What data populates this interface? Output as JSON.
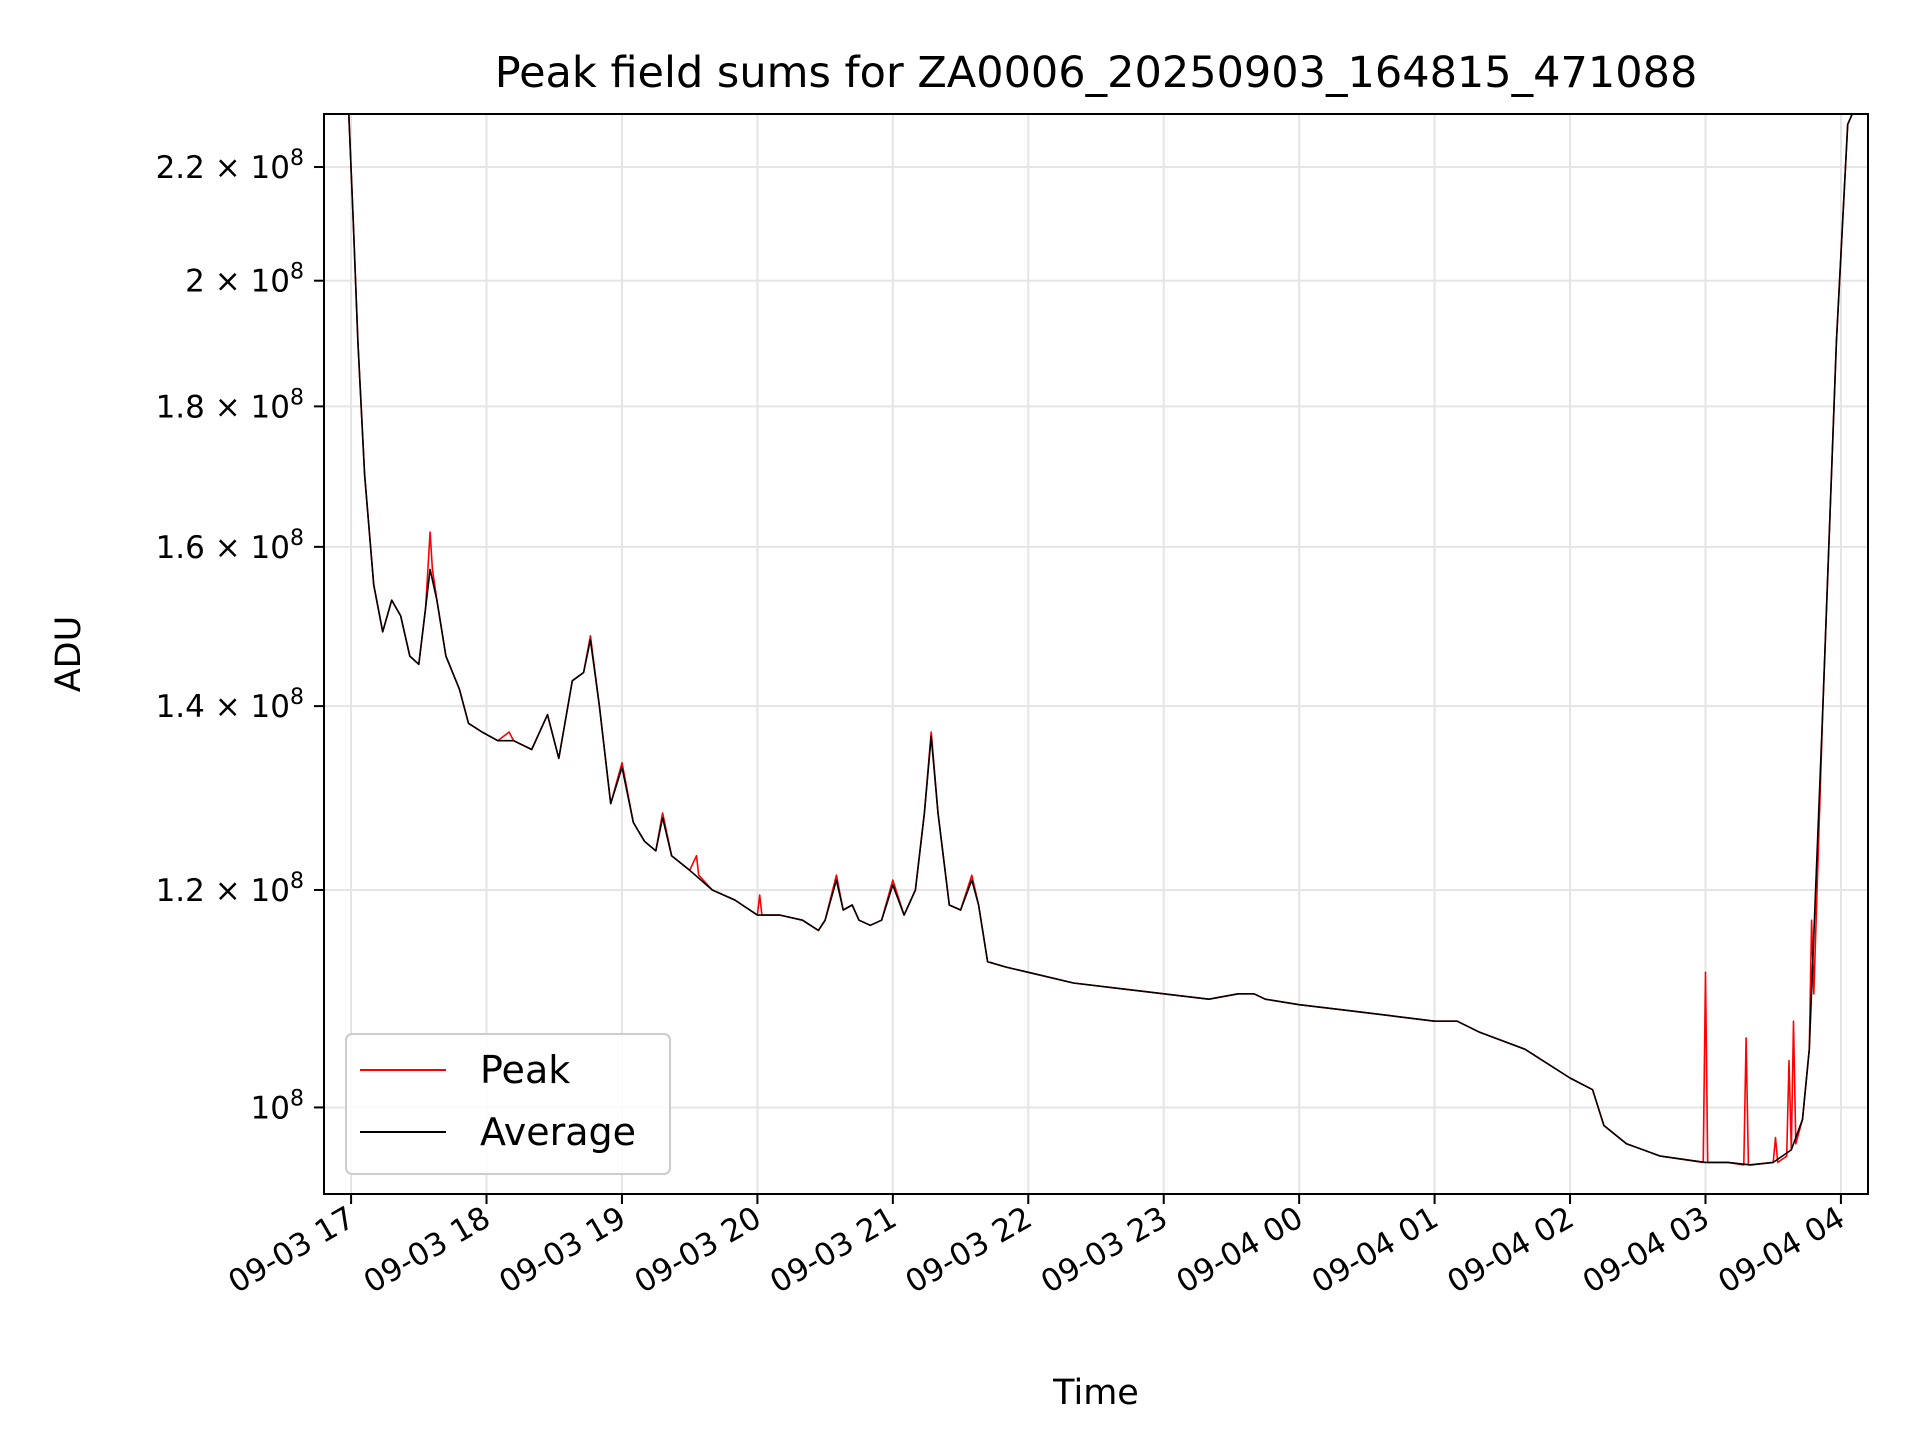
{
  "chart_data": {
    "type": "line",
    "title": "Peak field sums for ZA0006_20250903_164815_471088",
    "xlabel": "Time",
    "ylabel": "ADU",
    "x_scale": "time",
    "y_scale": "log",
    "xlim": [
      "2025-09-03 16:48",
      "2025-09-04 04:12"
    ],
    "ylim": [
      93000000.0,
      230000000.0
    ],
    "grid": true,
    "legend_position": "lower left",
    "x_ticks": [
      "2025-09-03 17:00",
      "2025-09-03 18:00",
      "2025-09-03 19:00",
      "2025-09-03 20:00",
      "2025-09-03 21:00",
      "2025-09-03 22:00",
      "2025-09-03 23:00",
      "2025-09-04 00:00",
      "2025-09-04 01:00",
      "2025-09-04 02:00",
      "2025-09-04 03:00",
      "2025-09-04 04:00"
    ],
    "x_tick_labels": [
      "09-03 17",
      "09-03 18",
      "09-03 19",
      "09-03 20",
      "09-03 21",
      "09-03 22",
      "09-03 23",
      "09-04 00",
      "09-04 01",
      "09-04 02",
      "09-04 03",
      "09-04 04"
    ],
    "y_ticks": [
      {
        "value": 100000000.0,
        "mantissa": "",
        "exp": "8"
      },
      {
        "value": 120000000.0,
        "mantissa": "1.2",
        "exp": "8"
      },
      {
        "value": 140000000.0,
        "mantissa": "1.4",
        "exp": "8"
      },
      {
        "value": 160000000.0,
        "mantissa": "1.6",
        "exp": "8"
      },
      {
        "value": 180000000.0,
        "mantissa": "1.8",
        "exp": "8"
      },
      {
        "value": 200000000.0,
        "mantissa": "2",
        "exp": "8"
      },
      {
        "value": 220000000.0,
        "mantissa": "2.2",
        "exp": "8"
      }
    ],
    "colors": {
      "peak": "#ff0000",
      "average": "#000000",
      "grid": "#e5e5e5"
    },
    "series": [
      {
        "name": "Average",
        "points": [
          [
            "2025-09-03 16:59",
            230000000.0
          ],
          [
            "2025-09-03 17:01",
            210000000.0
          ],
          [
            "2025-09-03 17:03",
            190000000.0
          ],
          [
            "2025-09-03 17:06",
            170000000.0
          ],
          [
            "2025-09-03 17:10",
            155000000.0
          ],
          [
            "2025-09-03 17:14",
            149000000.0
          ],
          [
            "2025-09-03 17:18",
            153000000.0
          ],
          [
            "2025-09-03 17:22",
            151000000.0
          ],
          [
            "2025-09-03 17:26",
            146000000.0
          ],
          [
            "2025-09-03 17:30",
            145000000.0
          ],
          [
            "2025-09-03 17:33",
            152000000.0
          ],
          [
            "2025-09-03 17:35",
            157000000.0
          ],
          [
            "2025-09-03 17:38",
            153000000.0
          ],
          [
            "2025-09-03 17:42",
            146000000.0
          ],
          [
            "2025-09-03 17:48",
            142000000.0
          ],
          [
            "2025-09-03 17:52",
            138000000.0
          ],
          [
            "2025-09-03 17:58",
            137000000.0
          ],
          [
            "2025-09-03 18:05",
            136000000.0
          ],
          [
            "2025-09-03 18:12",
            136000000.0
          ],
          [
            "2025-09-03 18:20",
            135000000.0
          ],
          [
            "2025-09-03 18:27",
            139000000.0
          ],
          [
            "2025-09-03 18:32",
            134000000.0
          ],
          [
            "2025-09-03 18:38",
            143000000.0
          ],
          [
            "2025-09-03 18:43",
            144000000.0
          ],
          [
            "2025-09-03 18:46",
            148000000.0
          ],
          [
            "2025-09-03 18:50",
            140000000.0
          ],
          [
            "2025-09-03 18:55",
            129000000.0
          ],
          [
            "2025-09-03 19:00",
            133000000.0
          ],
          [
            "2025-09-03 19:05",
            127000000.0
          ],
          [
            "2025-09-03 19:10",
            125000000.0
          ],
          [
            "2025-09-03 19:15",
            124000000.0
          ],
          [
            "2025-09-03 19:18",
            127500000.0
          ],
          [
            "2025-09-03 19:22",
            123500000.0
          ],
          [
            "2025-09-03 19:30",
            122000000.0
          ],
          [
            "2025-09-03 19:40",
            120000000.0
          ],
          [
            "2025-09-03 19:50",
            119000000.0
          ],
          [
            "2025-09-03 20:00",
            117500000.0
          ],
          [
            "2025-09-03 20:10",
            117500000.0
          ],
          [
            "2025-09-03 20:20",
            117000000.0
          ],
          [
            "2025-09-03 20:27",
            116000000.0
          ],
          [
            "2025-09-03 20:30",
            117000000.0
          ],
          [
            "2025-09-03 20:35",
            121000000.0
          ],
          [
            "2025-09-03 20:38",
            118000000.0
          ],
          [
            "2025-09-03 20:42",
            118500000.0
          ],
          [
            "2025-09-03 20:45",
            117000000.0
          ],
          [
            "2025-09-03 20:50",
            116500000.0
          ],
          [
            "2025-09-03 20:55",
            117000000.0
          ],
          [
            "2025-09-03 21:00",
            120500000.0
          ],
          [
            "2025-09-03 21:05",
            117500000.0
          ],
          [
            "2025-09-03 21:10",
            120000000.0
          ],
          [
            "2025-09-03 21:14",
            128000000.0
          ],
          [
            "2025-09-03 21:17",
            136500000.0
          ],
          [
            "2025-09-03 21:20",
            128000000.0
          ],
          [
            "2025-09-03 21:25",
            118500000.0
          ],
          [
            "2025-09-03 21:30",
            118000000.0
          ],
          [
            "2025-09-03 21:35",
            121000000.0
          ],
          [
            "2025-09-03 21:38",
            118500000.0
          ],
          [
            "2025-09-03 21:42",
            113000000.0
          ],
          [
            "2025-09-03 21:50",
            112500000.0
          ],
          [
            "2025-09-03 22:00",
            112000000.0
          ],
          [
            "2025-09-03 22:20",
            111000000.0
          ],
          [
            "2025-09-03 22:40",
            110500000.0
          ],
          [
            "2025-09-03 23:00",
            110000000.0
          ],
          [
            "2025-09-03 23:20",
            109500000.0
          ],
          [
            "2025-09-03 23:33",
            110000000.0
          ],
          [
            "2025-09-03 23:40",
            110000000.0
          ],
          [
            "2025-09-03 23:45",
            109500000.0
          ],
          [
            "2025-09-04 00:00",
            109000000.0
          ],
          [
            "2025-09-04 00:20",
            108500000.0
          ],
          [
            "2025-09-04 00:40",
            108000000.0
          ],
          [
            "2025-09-04 01:00",
            107500000.0
          ],
          [
            "2025-09-04 01:10",
            107500000.0
          ],
          [
            "2025-09-04 01:20",
            106500000.0
          ],
          [
            "2025-09-04 01:40",
            105000000.0
          ],
          [
            "2025-09-04 02:00",
            102500000.0
          ],
          [
            "2025-09-04 02:10",
            101500000.0
          ],
          [
            "2025-09-04 02:15",
            98500000.0
          ],
          [
            "2025-09-04 02:25",
            97000000.0
          ],
          [
            "2025-09-04 02:40",
            96000000.0
          ],
          [
            "2025-09-04 03:00",
            95500000.0
          ],
          [
            "2025-09-04 03:10",
            95500000.0
          ],
          [
            "2025-09-04 03:20",
            95300000.0
          ],
          [
            "2025-09-04 03:30",
            95500000.0
          ],
          [
            "2025-09-04 03:38",
            96500000.0
          ],
          [
            "2025-09-04 03:43",
            99000000.0
          ],
          [
            "2025-09-04 03:46",
            105000000.0
          ],
          [
            "2025-09-04 03:52",
            140000000.0
          ],
          [
            "2025-09-04 03:58",
            190000000.0
          ],
          [
            "2025-09-04 04:03",
            228000000.0
          ],
          [
            "2025-09-04 04:05",
            230000000.0
          ]
        ]
      },
      {
        "name": "Peak",
        "points": [
          [
            "2025-09-03 16:59",
            230000000.0
          ],
          [
            "2025-09-03 17:01",
            210000000.0
          ],
          [
            "2025-09-03 17:03",
            190000000.0
          ],
          [
            "2025-09-03 17:06",
            170000000.0
          ],
          [
            "2025-09-03 17:10",
            155000000.0
          ],
          [
            "2025-09-03 17:14",
            149000000.0
          ],
          [
            "2025-09-03 17:18",
            153000000.0
          ],
          [
            "2025-09-03 17:22",
            151000000.0
          ],
          [
            "2025-09-03 17:26",
            146000000.0
          ],
          [
            "2025-09-03 17:30",
            145000000.0
          ],
          [
            "2025-09-03 17:33",
            152000000.0
          ],
          [
            "2025-09-03 17:35",
            162000000.0
          ],
          [
            "2025-09-03 17:36",
            157000000.0
          ],
          [
            "2025-09-03 17:38",
            153000000.0
          ],
          [
            "2025-09-03 17:42",
            146000000.0
          ],
          [
            "2025-09-03 17:48",
            142000000.0
          ],
          [
            "2025-09-03 17:52",
            138000000.0
          ],
          [
            "2025-09-03 17:58",
            137000000.0
          ],
          [
            "2025-09-03 18:05",
            136000000.0
          ],
          [
            "2025-09-03 18:10",
            137000000.0
          ],
          [
            "2025-09-03 18:12",
            136000000.0
          ],
          [
            "2025-09-03 18:20",
            135000000.0
          ],
          [
            "2025-09-03 18:27",
            139000000.0
          ],
          [
            "2025-09-03 18:32",
            134000000.0
          ],
          [
            "2025-09-03 18:38",
            143000000.0
          ],
          [
            "2025-09-03 18:43",
            144000000.0
          ],
          [
            "2025-09-03 18:46",
            148500000.0
          ],
          [
            "2025-09-03 18:50",
            140000000.0
          ],
          [
            "2025-09-03 18:55",
            129000000.0
          ],
          [
            "2025-09-03 19:00",
            133500000.0
          ],
          [
            "2025-09-03 19:05",
            127000000.0
          ],
          [
            "2025-09-03 19:10",
            125000000.0
          ],
          [
            "2025-09-03 19:15",
            124000000.0
          ],
          [
            "2025-09-03 19:18",
            128000000.0
          ],
          [
            "2025-09-03 19:22",
            123500000.0
          ],
          [
            "2025-09-03 19:30",
            122000000.0
          ],
          [
            "2025-09-03 19:33",
            123500000.0
          ],
          [
            "2025-09-03 19:34",
            121500000.0
          ],
          [
            "2025-09-03 19:40",
            120000000.0
          ],
          [
            "2025-09-03 19:50",
            119000000.0
          ],
          [
            "2025-09-03 20:00",
            117500000.0
          ],
          [
            "2025-09-03 20:01",
            119500000.0
          ],
          [
            "2025-09-03 20:02",
            117500000.0
          ],
          [
            "2025-09-03 20:10",
            117500000.0
          ],
          [
            "2025-09-03 20:20",
            117000000.0
          ],
          [
            "2025-09-03 20:27",
            116000000.0
          ],
          [
            "2025-09-03 20:30",
            117000000.0
          ],
          [
            "2025-09-03 20:35",
            121500000.0
          ],
          [
            "2025-09-03 20:38",
            118000000.0
          ],
          [
            "2025-09-03 20:42",
            118500000.0
          ],
          [
            "2025-09-03 20:45",
            117000000.0
          ],
          [
            "2025-09-03 20:50",
            116500000.0
          ],
          [
            "2025-09-03 20:55",
            117000000.0
          ],
          [
            "2025-09-03 21:00",
            121000000.0
          ],
          [
            "2025-09-03 21:05",
            117500000.0
          ],
          [
            "2025-09-03 21:10",
            120000000.0
          ],
          [
            "2025-09-03 21:14",
            128000000.0
          ],
          [
            "2025-09-03 21:17",
            137000000.0
          ],
          [
            "2025-09-03 21:20",
            128000000.0
          ],
          [
            "2025-09-03 21:25",
            118500000.0
          ],
          [
            "2025-09-03 21:30",
            118000000.0
          ],
          [
            "2025-09-03 21:35",
            121500000.0
          ],
          [
            "2025-09-03 21:38",
            118500000.0
          ],
          [
            "2025-09-03 21:42",
            113000000.0
          ],
          [
            "2025-09-03 21:50",
            112500000.0
          ],
          [
            "2025-09-03 22:00",
            112000000.0
          ],
          [
            "2025-09-03 22:20",
            111000000.0
          ],
          [
            "2025-09-03 22:40",
            110500000.0
          ],
          [
            "2025-09-03 23:00",
            110000000.0
          ],
          [
            "2025-09-03 23:20",
            109500000.0
          ],
          [
            "2025-09-03 23:33",
            110000000.0
          ],
          [
            "2025-09-03 23:40",
            110000000.0
          ],
          [
            "2025-09-03 23:45",
            109500000.0
          ],
          [
            "2025-09-04 00:00",
            109000000.0
          ],
          [
            "2025-09-04 00:20",
            108500000.0
          ],
          [
            "2025-09-04 00:40",
            108000000.0
          ],
          [
            "2025-09-04 01:00",
            107500000.0
          ],
          [
            "2025-09-04 01:10",
            107500000.0
          ],
          [
            "2025-09-04 01:20",
            106500000.0
          ],
          [
            "2025-09-04 01:40",
            105000000.0
          ],
          [
            "2025-09-04 02:00",
            102500000.0
          ],
          [
            "2025-09-04 02:10",
            101500000.0
          ],
          [
            "2025-09-04 02:15",
            98500000.0
          ],
          [
            "2025-09-04 02:25",
            97000000.0
          ],
          [
            "2025-09-04 02:40",
            96000000.0
          ],
          [
            "2025-09-04 02:59",
            95500000.0
          ],
          [
            "2025-09-04 03:00",
            112000000.0
          ],
          [
            "2025-09-04 03:01",
            95500000.0
          ],
          [
            "2025-09-04 03:10",
            95500000.0
          ],
          [
            "2025-09-04 03:17",
            95300000.0
          ],
          [
            "2025-09-04 03:18",
            106000000.0
          ],
          [
            "2025-09-04 03:19",
            95300000.0
          ],
          [
            "2025-09-04 03:30",
            95500000.0
          ],
          [
            "2025-09-04 03:31",
            97500000.0
          ],
          [
            "2025-09-04 03:32",
            95500000.0
          ],
          [
            "2025-09-04 03:36",
            96000000.0
          ],
          [
            "2025-09-04 03:37",
            104000000.0
          ],
          [
            "2025-09-04 03:38",
            96500000.0
          ],
          [
            "2025-09-04 03:39",
            107500000.0
          ],
          [
            "2025-09-04 03:40",
            97000000.0
          ],
          [
            "2025-09-04 03:43",
            99000000.0
          ],
          [
            "2025-09-04 03:46",
            105000000.0
          ],
          [
            "2025-09-04 03:47",
            117000000.0
          ],
          [
            "2025-09-04 03:48",
            110000000.0
          ],
          [
            "2025-09-04 03:52",
            140000000.0
          ],
          [
            "2025-09-04 03:58",
            190000000.0
          ],
          [
            "2025-09-04 04:03",
            228000000.0
          ],
          [
            "2025-09-04 04:05",
            230000000.0
          ]
        ]
      }
    ]
  },
  "legend": [
    {
      "label": "Peak",
      "color": "#ff0000"
    },
    {
      "label": "Average",
      "color": "#000000"
    }
  ]
}
